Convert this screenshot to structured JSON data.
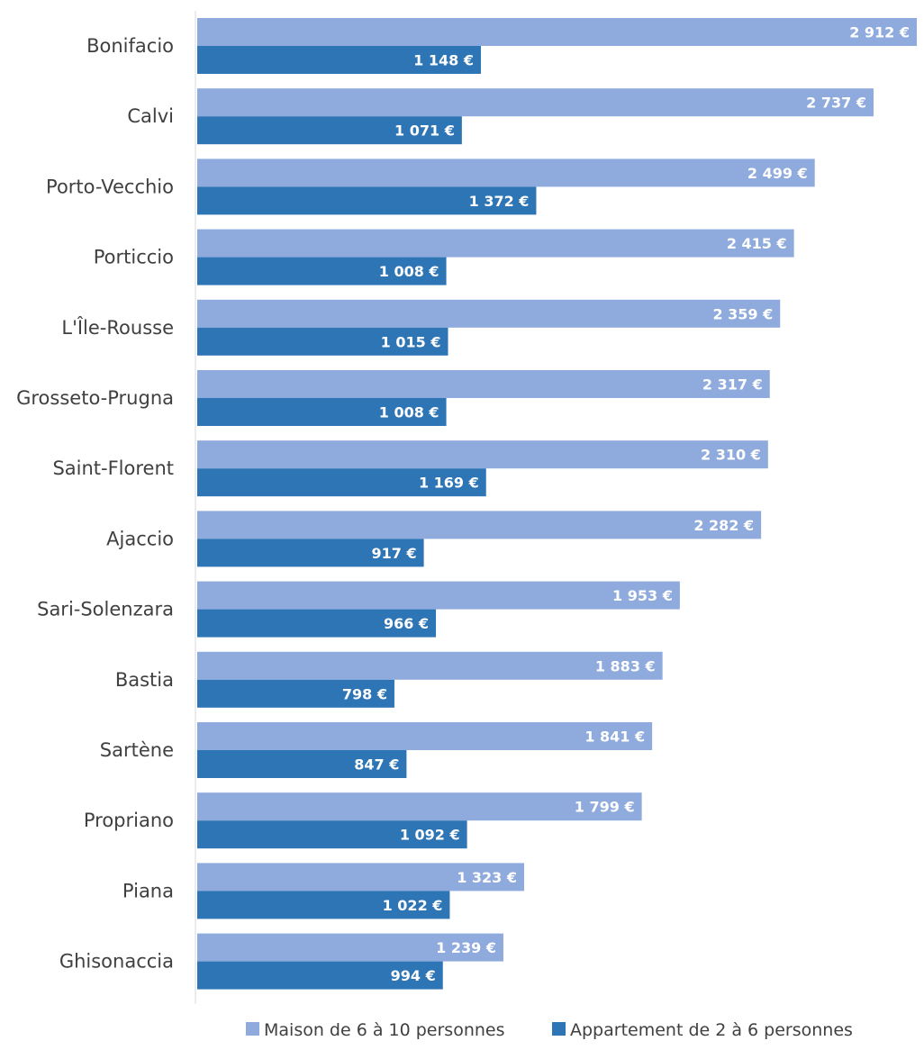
{
  "chart_data": {
    "type": "bar",
    "orientation": "horizontal",
    "title": "",
    "xlabel": "",
    "ylabel": "",
    "categories": [
      "Bonifacio",
      "Calvi",
      "Porto-Vecchio",
      "Porticcio",
      "L'Île-Rousse",
      "Grosseto-Prugna",
      "Saint-Florent",
      "Ajaccio",
      "Sari-Solenzara",
      "Bastia",
      "Sartène",
      "Propriano",
      "Piana",
      "Ghisonaccia"
    ],
    "series": [
      {
        "name": "Maison de 6 à 10 personnes",
        "color": "#8faadc",
        "values": [
          2912,
          2737,
          2499,
          2415,
          2359,
          2317,
          2310,
          2282,
          1953,
          1883,
          1841,
          1799,
          1323,
          1239
        ],
        "labels": [
          "2 912 €",
          "2 737 €",
          "2 499 €",
          "2 415 €",
          "2 359 €",
          "2 317 €",
          "2 310 €",
          "2 282 €",
          "1 953 €",
          "1 883 €",
          "1 841 €",
          "1 799 €",
          "1 323 €",
          "1 239 €"
        ]
      },
      {
        "name": "Appartement de 2 à 6 personnes",
        "color": "#2e75b6",
        "values": [
          1148,
          1071,
          1372,
          1008,
          1015,
          1008,
          1169,
          917,
          966,
          798,
          847,
          1092,
          1022,
          994
        ],
        "labels": [
          "1 148 €",
          "1 071 €",
          "1 372 €",
          "1 008 €",
          "1 015 €",
          "1 008 €",
          "1 169 €",
          "917 €",
          "966 €",
          "798 €",
          "847 €",
          "1 092 €",
          "1 022 €",
          "994 €"
        ]
      }
    ],
    "xlim": [
      0,
      2912
    ],
    "grid": false,
    "legend_position": "bottom"
  }
}
